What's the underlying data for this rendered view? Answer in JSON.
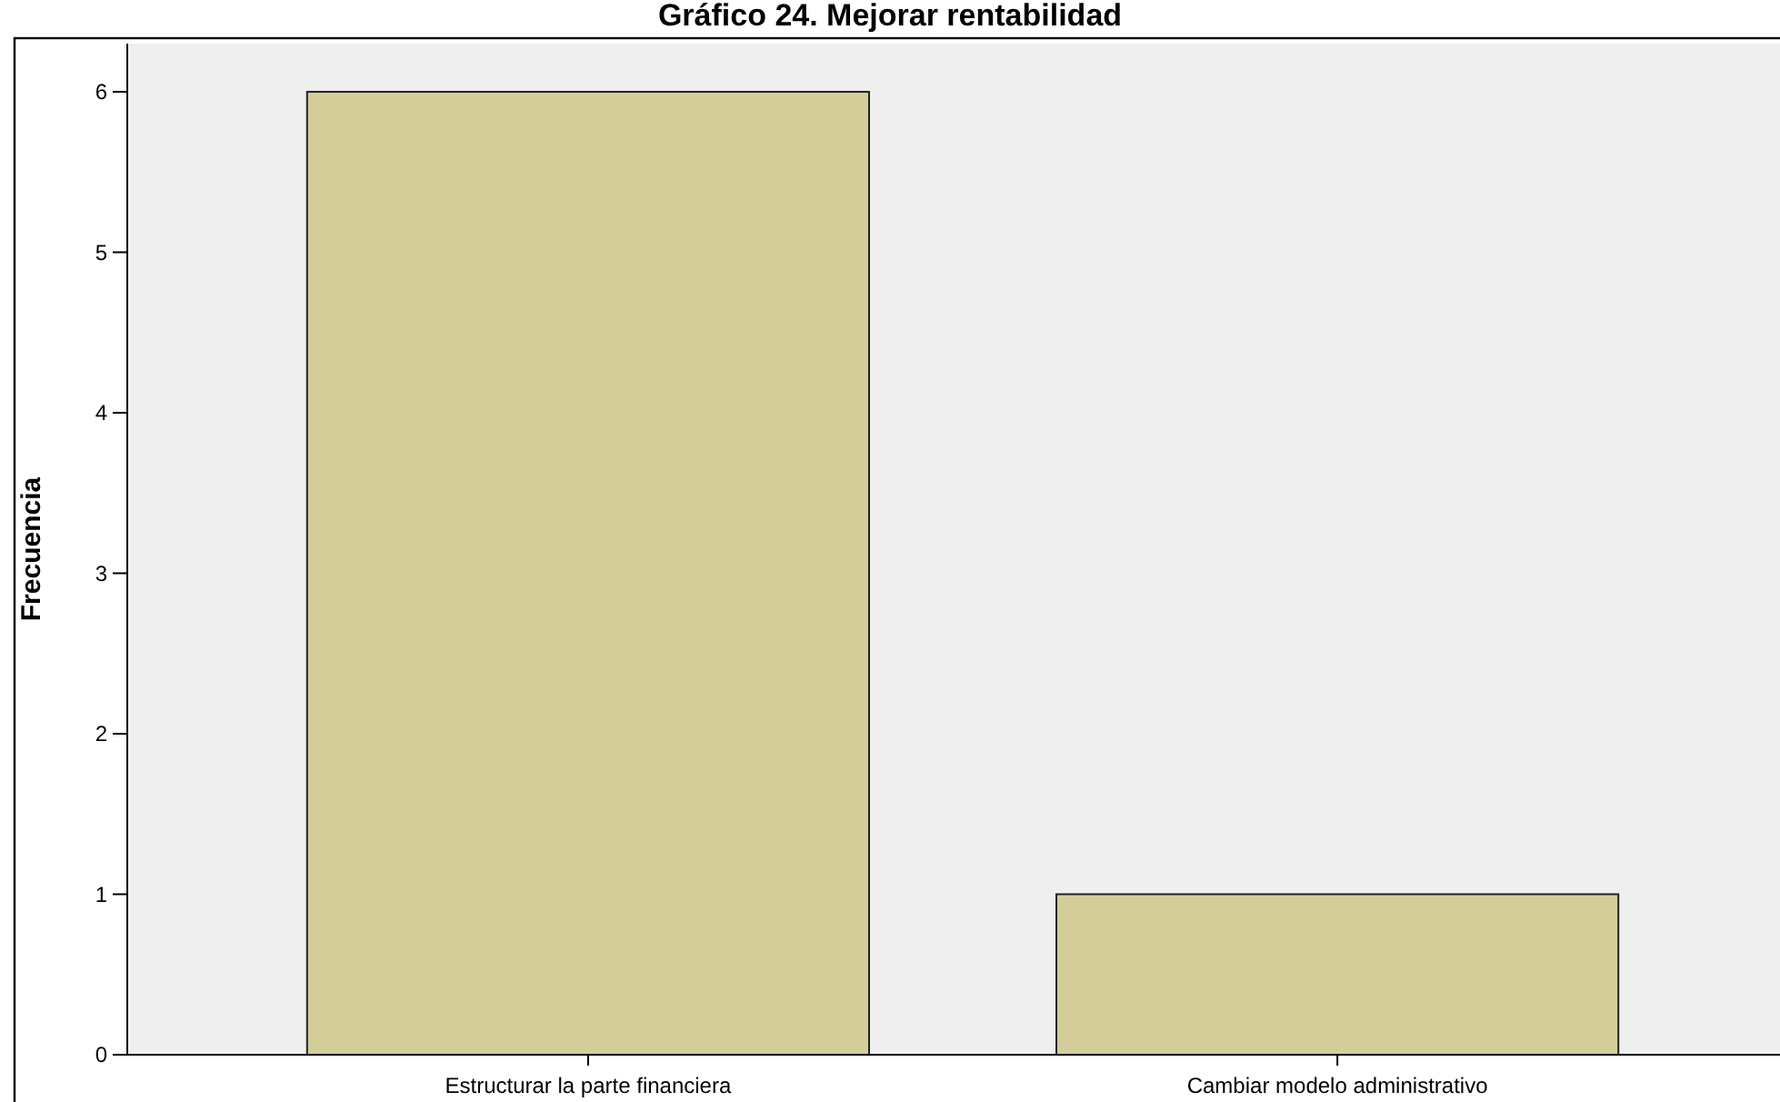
{
  "chart_data": {
    "type": "bar",
    "title": "Gráfico 24. Mejorar rentabilidad",
    "ylabel": "Frecuencia",
    "categories": [
      "Estructurar la parte financiera",
      "Cambiar modelo administrativo"
    ],
    "values": [
      6,
      1
    ],
    "color": "#d3ce99",
    "ylim": [
      0,
      6.3
    ],
    "yticks": [
      0,
      1,
      2,
      3,
      4,
      5,
      6
    ],
    "grid": false
  }
}
